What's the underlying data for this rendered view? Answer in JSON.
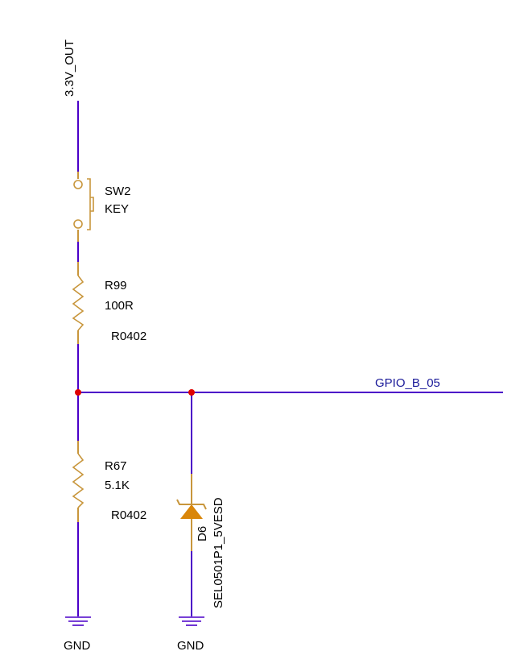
{
  "colors": {
    "wire": "#4b00c8",
    "component": "#c8963c",
    "junction": "#e00000",
    "diode_fill": "#d9860a",
    "text": "#000000",
    "net_label": "#1a1a99"
  },
  "power": {
    "supply_label": "3.3V_OUT"
  },
  "switch": {
    "ref": "SW2",
    "value": "KEY"
  },
  "r99": {
    "ref": "R99",
    "value": "100R",
    "package": "R0402"
  },
  "r67": {
    "ref": "R67",
    "value": "5.1K",
    "package": "R0402"
  },
  "diode": {
    "ref": "D6",
    "part": "SEL0501P1_5VESD"
  },
  "net": {
    "label": "GPIO_B_05"
  },
  "ground": {
    "left_label": "GND",
    "right_label": "GND"
  }
}
